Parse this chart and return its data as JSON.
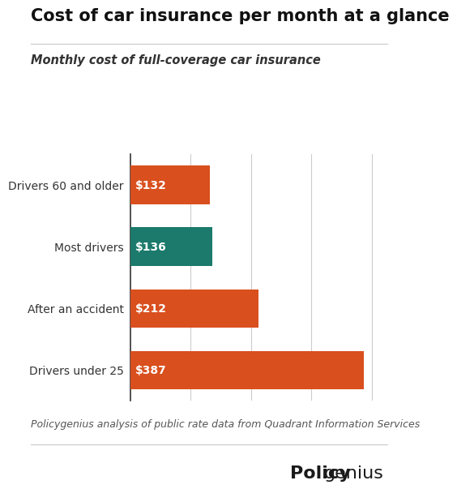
{
  "title": "Cost of car insurance per month at a glance",
  "subtitle": "Monthly cost of full-coverage car insurance",
  "categories": [
    "Drivers 60 and older",
    "Most drivers",
    "After an accident",
    "Drivers under 25"
  ],
  "values": [
    132,
    136,
    212,
    387
  ],
  "labels": [
    "$132",
    "$136",
    "$212",
    "$387"
  ],
  "bar_colors": [
    "#d94f1e",
    "#1b7a6b",
    "#d94f1e",
    "#d94f1e"
  ],
  "footnote": "Policygenius analysis of public rate data from Quadrant Information Services",
  "logo_bold": "Policy",
  "logo_regular": "genius",
  "xlim": [
    0,
    420
  ],
  "background_color": "#ffffff",
  "label_fontsize": 10,
  "title_fontsize": 15,
  "subtitle_fontsize": 10.5,
  "category_fontsize": 10,
  "footnote_fontsize": 9,
  "bar_height": 0.62,
  "grid_lines": [
    100,
    200,
    300,
    400
  ],
  "grid_color": "#cccccc",
  "separator_color": "#cccccc",
  "text_color": "#333333",
  "title_color": "#111111",
  "logo_fontsize": 16
}
